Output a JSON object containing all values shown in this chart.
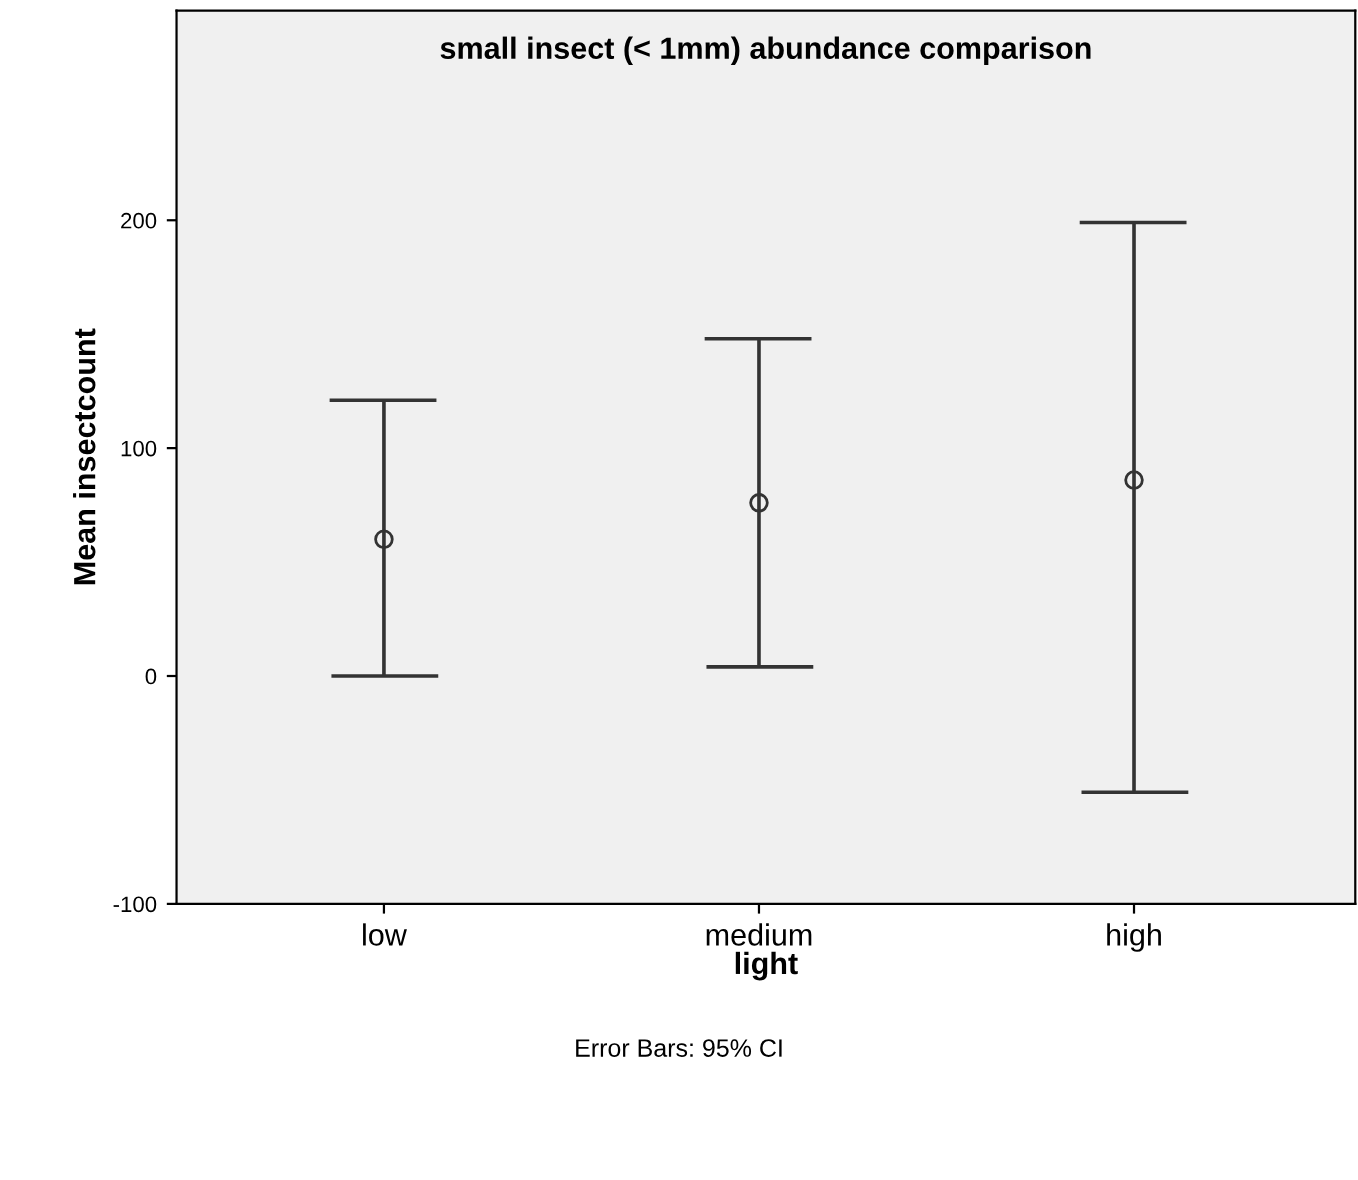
{
  "chart_data": {
    "type": "scatter",
    "title": "small insect (< 1mm) abundance comparison",
    "xlabel": "light",
    "ylabel": "Mean insectcount",
    "categories": [
      "low",
      "medium",
      "high"
    ],
    "values": [
      60,
      76,
      86
    ],
    "errors": [
      [
        0,
        121
      ],
      [
        4,
        148
      ],
      [
        -51,
        199
      ]
    ],
    "color": "#333333",
    "marker": "circle",
    "ylim": [
      -100,
      292
    ],
    "yticks": [
      -100,
      0,
      100,
      200
    ],
    "grid": false,
    "annotations": [
      "Error Bars: 95% CI"
    ]
  }
}
